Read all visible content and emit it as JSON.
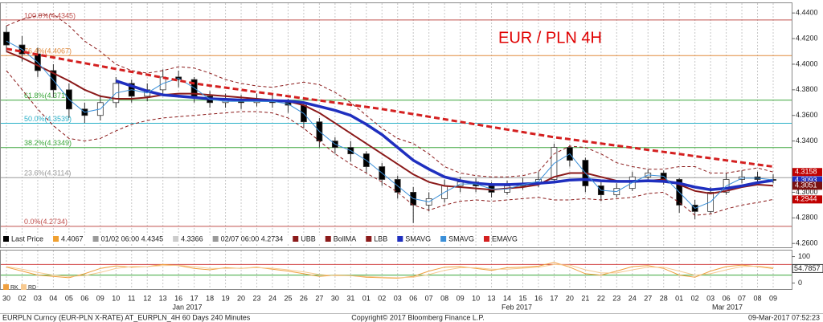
{
  "chart_data": [
    {
      "type": "candlestick",
      "title": "EUR / PLN 4H",
      "price_name": "Last Price",
      "price_color": "#000000",
      "categories": [
        "30",
        "02",
        "03",
        "04",
        "05",
        "06",
        "09",
        "10",
        "11",
        "12",
        "13",
        "16",
        "17",
        "18",
        "19",
        "20",
        "23",
        "24",
        "25",
        "26",
        "27",
        "30",
        "31",
        "01",
        "02",
        "03",
        "06",
        "07",
        "08",
        "09",
        "10",
        "13",
        "14",
        "15",
        "16",
        "17",
        "20",
        "21",
        "22",
        "23",
        "24",
        "27",
        "28",
        "01",
        "02",
        "03",
        "06",
        "07",
        "08",
        "09"
      ],
      "months": [
        "Jan 2017",
        "Feb 2017",
        "Mar 2017"
      ],
      "open": [
        4.425,
        4.415,
        4.408,
        4.395,
        4.38,
        4.365,
        4.36,
        4.37,
        4.385,
        4.375,
        4.38,
        4.39,
        4.388,
        4.375,
        4.37,
        4.372,
        4.37,
        4.372,
        4.37,
        4.368,
        4.355,
        4.34,
        4.335,
        4.33,
        4.32,
        4.31,
        4.3,
        4.29,
        4.295,
        4.305,
        4.308,
        4.305,
        4.3,
        4.305,
        4.307,
        4.31,
        4.335,
        4.325,
        4.305,
        4.298,
        4.303,
        4.312,
        4.315,
        4.31,
        4.29,
        4.285,
        4.3,
        4.31,
        4.312,
        4.31
      ],
      "high": [
        4.43,
        4.422,
        4.413,
        4.4,
        4.385,
        4.37,
        4.376,
        4.39,
        4.388,
        4.385,
        4.396,
        4.395,
        4.39,
        4.379,
        4.377,
        4.376,
        4.377,
        4.376,
        4.373,
        4.37,
        4.358,
        4.343,
        4.34,
        4.332,
        4.323,
        4.313,
        4.304,
        4.3,
        4.31,
        4.312,
        4.311,
        4.308,
        4.309,
        4.311,
        4.316,
        4.338,
        4.337,
        4.327,
        4.308,
        4.307,
        4.316,
        4.318,
        4.317,
        4.311,
        4.294,
        4.304,
        4.315,
        4.317,
        4.316,
        4.314
      ],
      "low": [
        4.41,
        4.402,
        4.39,
        4.374,
        4.358,
        4.354,
        4.356,
        4.366,
        4.37,
        4.371,
        4.377,
        4.382,
        4.37,
        4.366,
        4.366,
        4.365,
        4.367,
        4.366,
        4.362,
        4.35,
        4.335,
        4.33,
        4.324,
        4.315,
        4.305,
        4.295,
        4.276,
        4.285,
        4.292,
        4.3,
        4.3,
        4.296,
        4.298,
        4.302,
        4.304,
        4.309,
        4.32,
        4.3,
        4.293,
        4.296,
        4.301,
        4.31,
        4.306,
        4.284,
        4.279,
        4.283,
        4.298,
        4.307,
        4.307,
        4.307
      ],
      "close": [
        4.415,
        4.408,
        4.395,
        4.38,
        4.365,
        4.36,
        4.37,
        4.385,
        4.375,
        4.38,
        4.39,
        4.388,
        4.375,
        4.37,
        4.372,
        4.37,
        4.372,
        4.37,
        4.368,
        4.355,
        4.34,
        4.335,
        4.33,
        4.32,
        4.31,
        4.3,
        4.29,
        4.295,
        4.305,
        4.308,
        4.305,
        4.3,
        4.305,
        4.307,
        4.31,
        4.335,
        4.325,
        4.305,
        4.298,
        4.303,
        4.312,
        4.315,
        4.31,
        4.29,
        4.285,
        4.3,
        4.31,
        4.312,
        4.31,
        4.3093
      ],
      "overlays": [
        {
          "name": "UBB",
          "color": "#8b1a1a",
          "dash": true,
          "width": 1,
          "values": [
            4.43,
            4.435,
            4.438,
            4.439,
            4.43,
            4.418,
            4.41,
            4.4,
            4.395,
            4.393,
            4.395,
            4.398,
            4.397,
            4.393,
            4.388,
            4.385,
            4.383,
            4.382,
            4.384,
            4.386,
            4.384,
            4.378,
            4.37,
            4.36,
            4.35,
            4.342,
            4.338,
            4.33,
            4.32,
            4.315,
            4.313,
            4.312,
            4.312,
            4.313,
            4.316,
            4.33,
            4.336,
            4.335,
            4.33,
            4.323,
            4.32,
            4.318,
            4.318,
            4.32,
            4.32,
            4.315,
            4.315,
            4.317,
            4.319,
            4.3158
          ]
        },
        {
          "name": "BollMA",
          "color": "#8b1a1a",
          "dash": false,
          "width": 2,
          "values": [
            4.41,
            4.405,
            4.399,
            4.393,
            4.387,
            4.38,
            4.375,
            4.373,
            4.373,
            4.374,
            4.376,
            4.377,
            4.377,
            4.376,
            4.375,
            4.374,
            4.373,
            4.372,
            4.371,
            4.368,
            4.362,
            4.354,
            4.346,
            4.338,
            4.33,
            4.322,
            4.314,
            4.308,
            4.305,
            4.304,
            4.303,
            4.302,
            4.303,
            4.304,
            4.306,
            4.312,
            4.315,
            4.315,
            4.312,
            4.309,
            4.308,
            4.309,
            4.31,
            4.306,
            4.301,
            4.299,
            4.301,
            4.304,
            4.306,
            4.3051
          ]
        },
        {
          "name": "LBB",
          "color": "#8b1a1a",
          "dash": true,
          "width": 1,
          "values": [
            4.395,
            4.38,
            4.365,
            4.352,
            4.342,
            4.34,
            4.342,
            4.348,
            4.353,
            4.356,
            4.358,
            4.359,
            4.36,
            4.361,
            4.362,
            4.363,
            4.363,
            4.362,
            4.358,
            4.35,
            4.34,
            4.33,
            4.322,
            4.315,
            4.308,
            4.3,
            4.29,
            4.286,
            4.29,
            4.293,
            4.294,
            4.293,
            4.294,
            4.295,
            4.296,
            4.294,
            4.294,
            4.295,
            4.294,
            4.295,
            4.296,
            4.299,
            4.3,
            4.292,
            4.282,
            4.283,
            4.287,
            4.29,
            4.292,
            4.2944
          ]
        },
        {
          "name": "SMAVG",
          "color": "#1f2fbf",
          "dash": false,
          "width": 3.5,
          "values": [
            null,
            null,
            null,
            null,
            null,
            null,
            null,
            4.387,
            4.383,
            4.379,
            4.376,
            4.375,
            4.374,
            4.373,
            4.3725,
            4.372,
            4.3718,
            4.3715,
            4.3712,
            4.37,
            4.367,
            4.364,
            4.36,
            4.353,
            4.345,
            4.335,
            4.325,
            4.318,
            4.312,
            4.309,
            4.307,
            4.306,
            4.306,
            4.3065,
            4.307,
            4.308,
            4.3095,
            4.31,
            4.309,
            4.3085,
            4.3085,
            4.309,
            4.3085,
            4.307,
            4.304,
            4.302,
            4.303,
            4.305,
            4.3075,
            4.3093
          ]
        },
        {
          "name": "SMAVG",
          "color": "#3a8fd8",
          "dash": false,
          "width": 1,
          "values": [
            4.418,
            4.4115,
            4.4015,
            4.3875,
            4.3725,
            4.3625,
            4.365,
            4.3775,
            4.38,
            4.3775,
            4.385,
            4.389,
            4.3815,
            4.3725,
            4.371,
            4.371,
            4.371,
            4.371,
            4.369,
            4.3615,
            4.3475,
            4.3375,
            4.3325,
            4.325,
            4.315,
            4.305,
            4.295,
            4.2925,
            4.3,
            4.3065,
            4.3065,
            4.3025,
            4.3025,
            4.306,
            4.3085,
            4.3225,
            4.33,
            4.315,
            4.3015,
            4.3005,
            4.3075,
            4.3135,
            4.3125,
            4.3,
            4.2875,
            4.2925,
            4.305,
            4.311,
            4.311,
            4.3097
          ]
        },
        {
          "name": "EMAVG",
          "color": "#d42020",
          "dash": true,
          "width": 3,
          "values": [
            4.412,
            4.4098,
            4.4075,
            4.4053,
            4.403,
            4.4008,
            4.3985,
            4.3963,
            4.394,
            4.3918,
            4.3895,
            4.3873,
            4.385,
            4.3833,
            4.3817,
            4.38,
            4.3783,
            4.3767,
            4.375,
            4.3733,
            4.3717,
            4.37,
            4.3683,
            4.3667,
            4.365,
            4.363,
            4.361,
            4.359,
            4.357,
            4.355,
            4.353,
            4.351,
            4.349,
            4.347,
            4.345,
            4.343,
            4.3414,
            4.3397,
            4.3381,
            4.3364,
            4.3348,
            4.3331,
            4.3315,
            4.3299,
            4.3282,
            4.3266,
            4.3249,
            4.3233,
            4.3216,
            4.32
          ]
        }
      ],
      "fib_levels": [
        {
          "label": "100.0%(4.4345)",
          "value": 4.4345,
          "color": "#c0504d"
        },
        {
          "label": "76.4%(4.4067)",
          "value": 4.4067,
          "color": "#e08a3c"
        },
        {
          "label": "61.8%(4.3719)",
          "value": 4.3719,
          "color": "#3aa63a"
        },
        {
          "label": "50.0%(4.3539)",
          "value": 4.3539,
          "color": "#2ab0c8"
        },
        {
          "label": "38.2%(4.3349)",
          "value": 4.3349,
          "color": "#3aa63a"
        },
        {
          "label": "23.6%(4.3114)",
          "value": 4.3114,
          "color": "#9a9a9a"
        },
        {
          "label": "0.0%(4.2734)",
          "value": 4.2734,
          "color": "#c0504d"
        }
      ],
      "legend_notes": [
        {
          "text": "4.4067",
          "color": "#f0a030"
        },
        {
          "text": "01/02 06:00 4.4345",
          "color": "#9a9a9a"
        },
        {
          "text": "4.3366",
          "color": "#cccccc"
        },
        {
          "text": "02/07 06:00 4.2734",
          "color": "#9a9a9a"
        }
      ],
      "price_tags": [
        {
          "value": 4.3158,
          "color": "#c00000"
        },
        {
          "value": 4.3093,
          "color": "#1f2fbf"
        },
        {
          "value": 4.3051,
          "color": "#7a1010"
        },
        {
          "value": 4.2944,
          "color": "#c00000"
        }
      ],
      "ylim": [
        4.257,
        4.447
      ],
      "yticks": [
        {
          "value": 4.44,
          "label": "4.4400"
        },
        {
          "value": 4.42,
          "label": "4.4200"
        },
        {
          "value": 4.4,
          "label": "4.4000"
        },
        {
          "value": 4.38,
          "label": "4.3800"
        },
        {
          "value": 4.36,
          "label": "4.3600"
        },
        {
          "value": 4.34,
          "label": "4.3400"
        },
        {
          "value": 4.3,
          "label": "4.3000"
        },
        {
          "value": 4.28,
          "label": "4.2800"
        },
        {
          "value": 4.26,
          "label": "4.2600"
        }
      ],
      "grid": true
    },
    {
      "type": "line",
      "series": [
        {
          "name": "RK",
          "color": "#f0a040",
          "values": [
            60,
            45,
            30,
            25,
            20,
            35,
            55,
            65,
            60,
            62,
            70,
            66,
            55,
            50,
            58,
            55,
            60,
            52,
            45,
            35,
            25,
            30,
            28,
            22,
            20,
            18,
            25,
            45,
            60,
            62,
            55,
            48,
            58,
            60,
            64,
            78,
            60,
            35,
            30,
            45,
            62,
            66,
            55,
            30,
            22,
            45,
            62,
            68,
            62,
            54.7857
          ]
        },
        {
          "name": "RD",
          "color": "#f7c990",
          "values": [
            62,
            52,
            40,
            30,
            25,
            28,
            40,
            55,
            62,
            62,
            66,
            67,
            62,
            55,
            55,
            56,
            58,
            56,
            50,
            42,
            32,
            28,
            28,
            25,
            22,
            20,
            22,
            32,
            48,
            58,
            58,
            52,
            52,
            56,
            60,
            70,
            68,
            50,
            38,
            38,
            50,
            60,
            60,
            45,
            30,
            35,
            50,
            62,
            64,
            58
          ]
        }
      ],
      "levels": [
        {
          "value": 70,
          "color": "#d04040"
        },
        {
          "value": 30,
          "color": "#3aa63a"
        }
      ],
      "last_value": 54.7857,
      "ylim": [
        -23,
        126
      ],
      "yticks": [
        0,
        100
      ]
    }
  ],
  "footer": {
    "left": "EURPLN Curncy (EUR-PLN X-RATE) AT_EURPLN_4H 60 Days 240 Minutes",
    "center": "Copyright© 2017 Bloomberg Finance L.P.",
    "right": "09-Mar-2017 07:52:23"
  }
}
